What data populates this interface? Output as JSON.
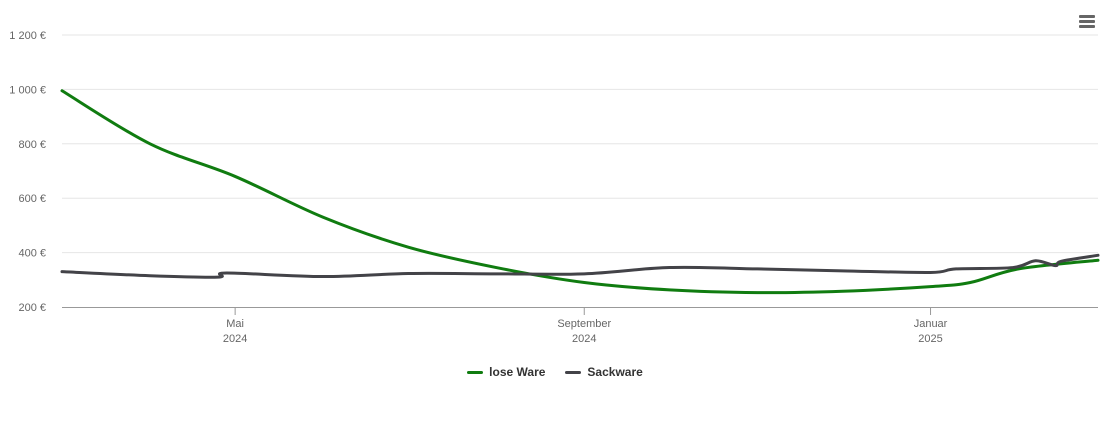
{
  "chart_data": {
    "type": "line",
    "title": "",
    "xlabel": "",
    "ylabel": "",
    "y_tick_labels": [
      "200 €",
      "400 €",
      "600 €",
      "800 €",
      "1 000 €",
      "1 200 €"
    ],
    "y_ticks": [
      200,
      400,
      600,
      800,
      1000,
      1200
    ],
    "ylim": [
      200,
      1200
    ],
    "x_range": [
      "2024-03-01",
      "2025-03-01"
    ],
    "x_ticks": [
      {
        "date": "2024-05-01",
        "month": "Mai",
        "year": "2024"
      },
      {
        "date": "2024-09-01",
        "month": "September",
        "year": "2024"
      },
      {
        "date": "2025-01-01",
        "month": "Januar",
        "year": "2025"
      }
    ],
    "grid": true,
    "legend_position": "bottom-center",
    "series": [
      {
        "name": "lose Ware",
        "color": "#107c10",
        "points": [
          [
            "2024-03-01",
            995
          ],
          [
            "2024-04-01",
            800
          ],
          [
            "2024-05-01",
            680
          ],
          [
            "2024-06-01",
            530
          ],
          [
            "2024-07-01",
            420
          ],
          [
            "2024-08-01",
            345
          ],
          [
            "2024-09-01",
            290
          ],
          [
            "2024-10-01",
            263
          ],
          [
            "2024-11-01",
            253
          ],
          [
            "2024-12-01",
            258
          ],
          [
            "2025-01-01",
            275
          ],
          [
            "2025-01-15",
            290
          ],
          [
            "2025-02-01",
            340
          ],
          [
            "2025-03-01",
            372
          ]
        ]
      },
      {
        "name": "Sackware",
        "color": "#434348",
        "points": [
          [
            "2024-03-01",
            330
          ],
          [
            "2024-04-01",
            315
          ],
          [
            "2024-04-25",
            310
          ],
          [
            "2024-04-28",
            325
          ],
          [
            "2024-06-01",
            312
          ],
          [
            "2024-07-01",
            323
          ],
          [
            "2024-08-01",
            322
          ],
          [
            "2024-09-01",
            322
          ],
          [
            "2024-10-01",
            345
          ],
          [
            "2024-11-01",
            340
          ],
          [
            "2024-12-01",
            333
          ],
          [
            "2025-01-01",
            327
          ],
          [
            "2025-01-10",
            340
          ],
          [
            "2025-01-30",
            345
          ],
          [
            "2025-02-07",
            370
          ],
          [
            "2025-02-14",
            352
          ],
          [
            "2025-02-16",
            368
          ],
          [
            "2025-03-01",
            390
          ]
        ]
      }
    ]
  },
  "menu": {
    "icon": "hamburger-menu-icon"
  }
}
